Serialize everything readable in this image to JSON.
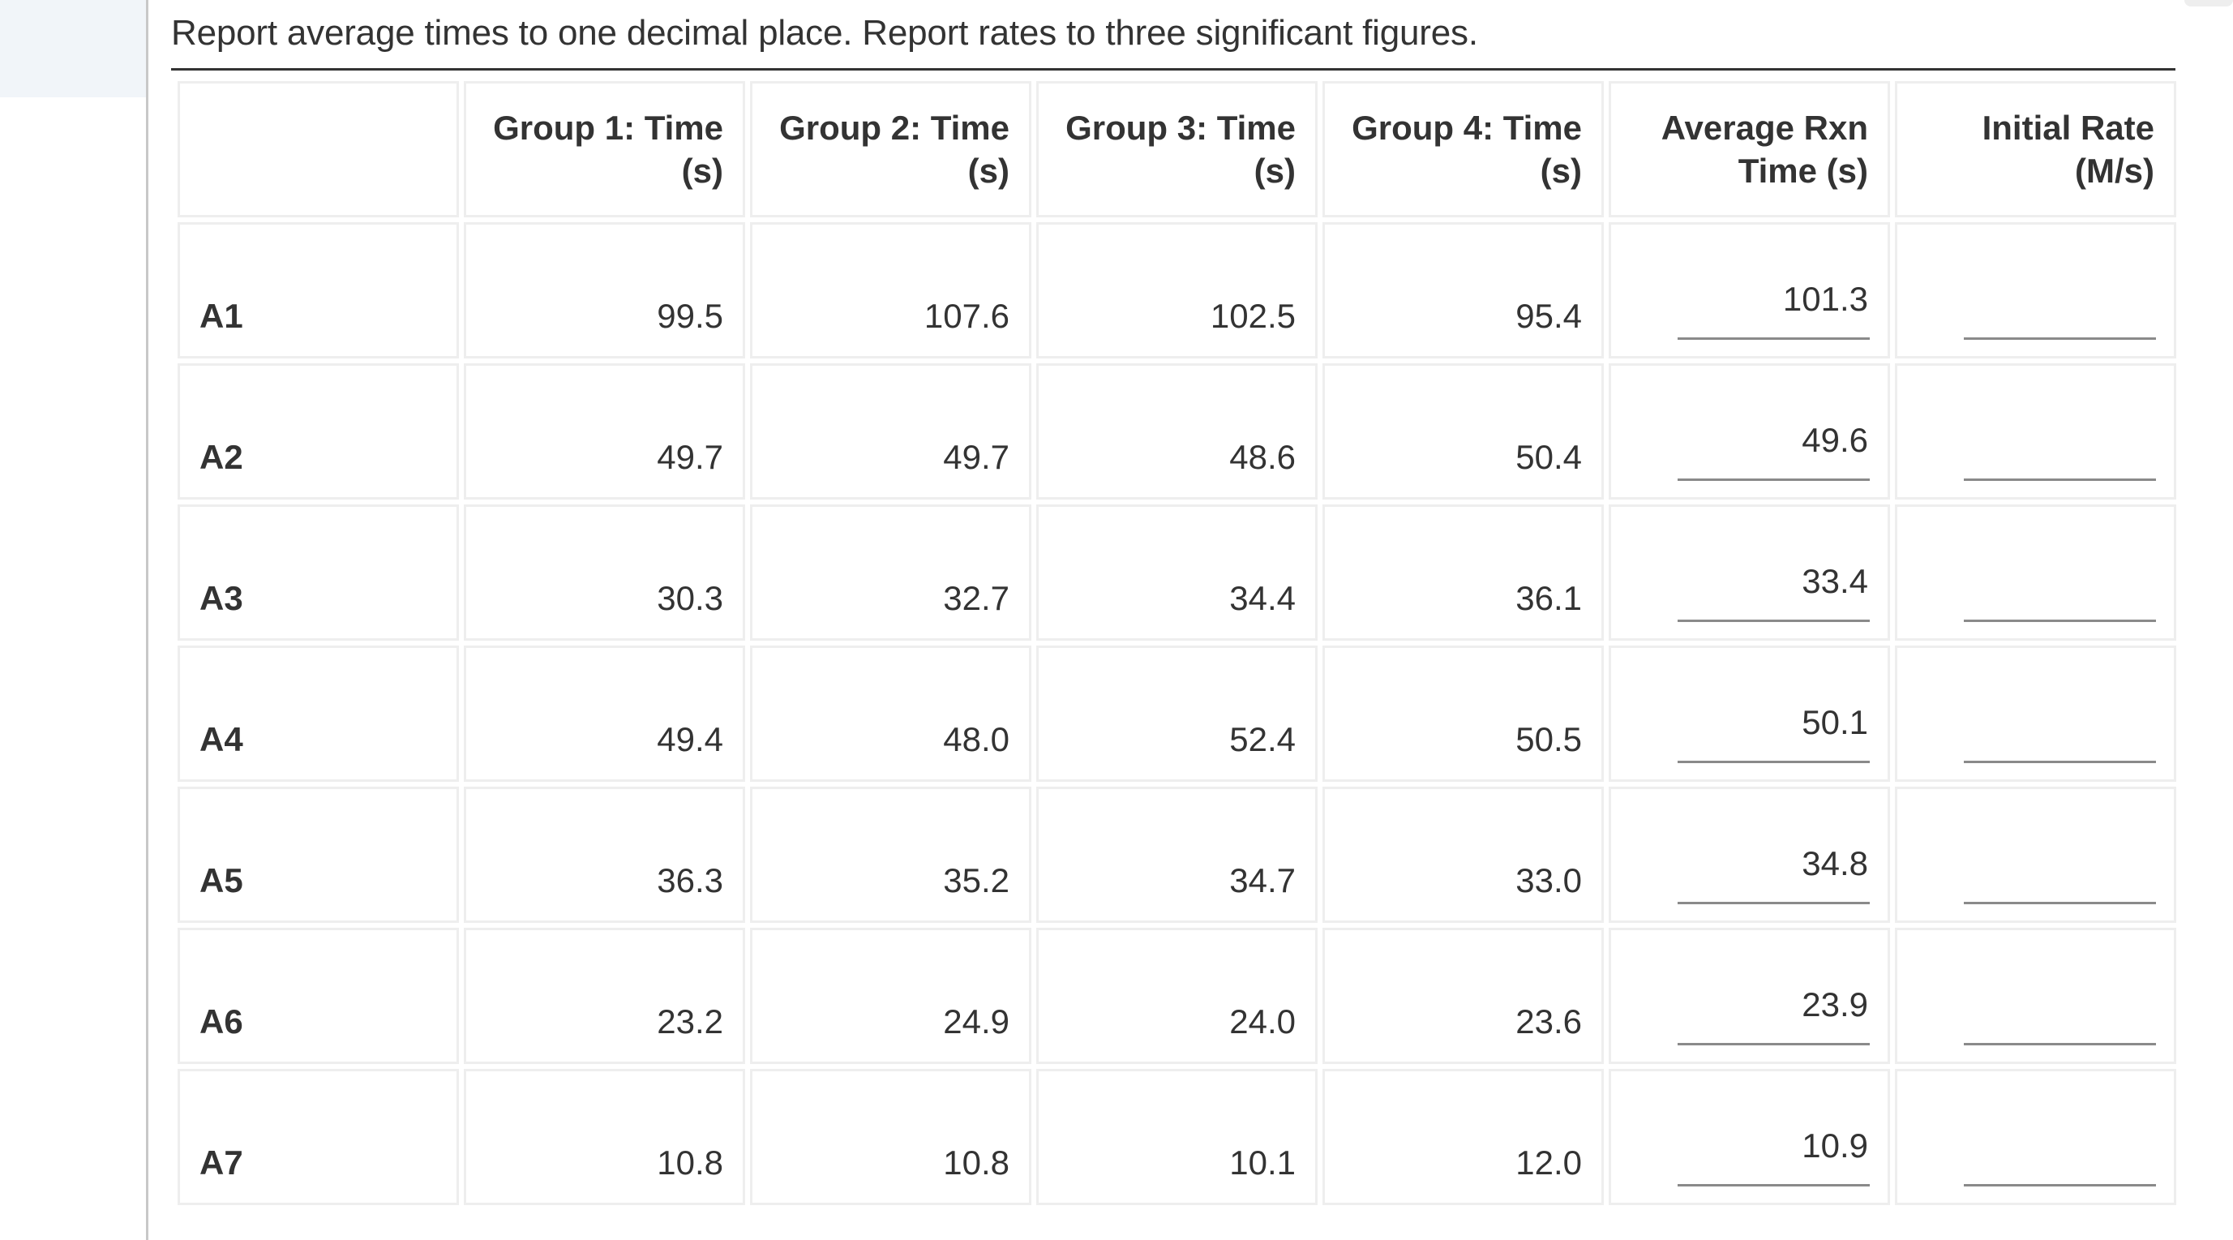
{
  "instructions": "Report average times to one decimal place. Report rates to three significant figures.",
  "table": {
    "headers": [
      "",
      "Group 1: Time (s)",
      "Group 2: Time (s)",
      "Group 3: Time (s)",
      "Group 4: Time (s)",
      "Average Rxn Time (s)",
      "Initial Rate (M/s)"
    ],
    "rows": [
      {
        "label": "A1",
        "g1": "99.5",
        "g2": "107.6",
        "g3": "102.5",
        "g4": "95.4",
        "avg": "101.3",
        "rate": ""
      },
      {
        "label": "A2",
        "g1": "49.7",
        "g2": "49.7",
        "g3": "48.6",
        "g4": "50.4",
        "avg": "49.6",
        "rate": ""
      },
      {
        "label": "A3",
        "g1": "30.3",
        "g2": "32.7",
        "g3": "34.4",
        "g4": "36.1",
        "avg": "33.4",
        "rate": ""
      },
      {
        "label": "A4",
        "g1": "49.4",
        "g2": "48.0",
        "g3": "52.4",
        "g4": "50.5",
        "avg": "50.1",
        "rate": ""
      },
      {
        "label": "A5",
        "g1": "36.3",
        "g2": "35.2",
        "g3": "34.7",
        "g4": "33.0",
        "avg": "34.8",
        "rate": ""
      },
      {
        "label": "A6",
        "g1": "23.2",
        "g2": "24.9",
        "g3": "24.0",
        "g4": "23.6",
        "avg": "23.9",
        "rate": ""
      },
      {
        "label": "A7",
        "g1": "10.8",
        "g2": "10.8",
        "g3": "10.1",
        "g4": "12.0",
        "avg": "10.9",
        "rate": ""
      }
    ]
  }
}
